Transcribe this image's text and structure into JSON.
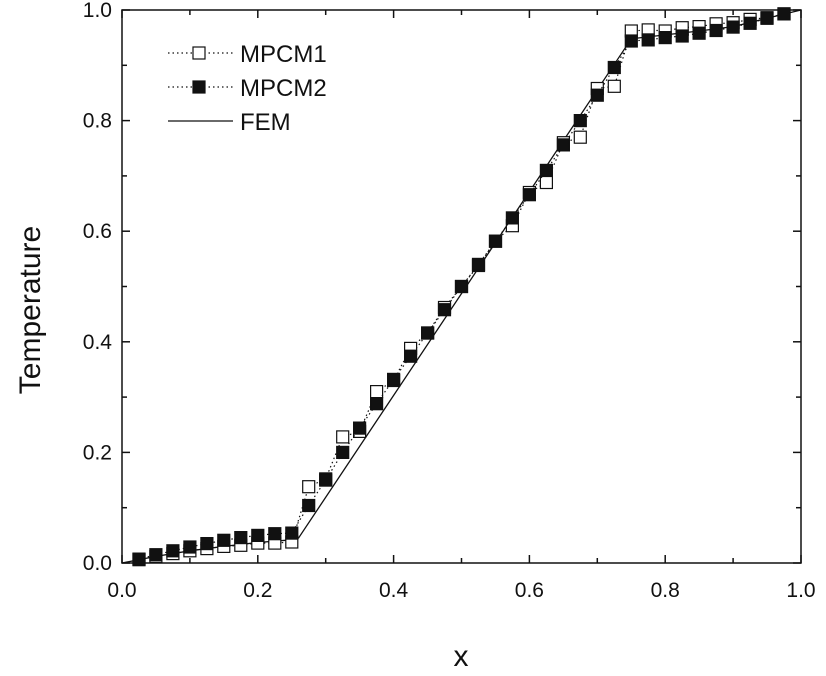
{
  "chart_data": {
    "type": "line",
    "xlabel": "x",
    "ylabel": "Temperature",
    "xlim": [
      0.0,
      1.0
    ],
    "ylim": [
      0.0,
      1.0
    ],
    "x_ticks": [
      "0.0",
      "0.2",
      "0.4",
      "0.6",
      "0.8",
      "1.0"
    ],
    "y_ticks": [
      "0.0",
      "0.2",
      "0.4",
      "0.6",
      "0.8",
      "1.0"
    ],
    "grid": false,
    "legend_position": "top-left",
    "series": [
      {
        "name": "MPCM1",
        "marker": "open-square",
        "line": "dotted",
        "color": "#111111",
        "x": [
          0.025,
          0.05,
          0.075,
          0.1,
          0.125,
          0.15,
          0.175,
          0.2,
          0.225,
          0.25,
          0.275,
          0.3,
          0.325,
          0.35,
          0.375,
          0.4,
          0.425,
          0.45,
          0.475,
          0.5,
          0.525,
          0.55,
          0.575,
          0.6,
          0.625,
          0.65,
          0.675,
          0.7,
          0.725,
          0.75,
          0.775,
          0.8,
          0.825,
          0.85,
          0.875,
          0.9,
          0.925,
          0.95,
          0.975
        ],
        "y": [
          0.006,
          0.012,
          0.017,
          0.022,
          0.026,
          0.03,
          0.032,
          0.036,
          0.036,
          0.038,
          0.138,
          0.152,
          0.228,
          0.238,
          0.31,
          0.33,
          0.388,
          0.416,
          0.462,
          0.5,
          0.538,
          0.582,
          0.61,
          0.67,
          0.688,
          0.76,
          0.77,
          0.858,
          0.862,
          0.962,
          0.964,
          0.962,
          0.968,
          0.97,
          0.975,
          0.977,
          0.983,
          0.986,
          0.993
        ]
      },
      {
        "name": "MPCM2",
        "marker": "filled-square",
        "line": "dotted",
        "color": "#111111",
        "x": [
          0.025,
          0.05,
          0.075,
          0.1,
          0.125,
          0.15,
          0.175,
          0.2,
          0.225,
          0.25,
          0.275,
          0.3,
          0.325,
          0.35,
          0.375,
          0.4,
          0.425,
          0.45,
          0.475,
          0.5,
          0.525,
          0.55,
          0.575,
          0.6,
          0.625,
          0.65,
          0.675,
          0.7,
          0.725,
          0.75,
          0.775,
          0.8,
          0.825,
          0.85,
          0.875,
          0.9,
          0.925,
          0.95,
          0.975
        ],
        "y": [
          0.007,
          0.015,
          0.022,
          0.029,
          0.035,
          0.041,
          0.046,
          0.05,
          0.053,
          0.054,
          0.104,
          0.15,
          0.2,
          0.244,
          0.288,
          0.332,
          0.374,
          0.416,
          0.458,
          0.5,
          0.54,
          0.582,
          0.624,
          0.666,
          0.71,
          0.756,
          0.8,
          0.846,
          0.896,
          0.944,
          0.946,
          0.95,
          0.953,
          0.958,
          0.963,
          0.969,
          0.976,
          0.985,
          0.993
        ]
      },
      {
        "name": "FEM",
        "marker": "none",
        "line": "solid",
        "color": "#111111",
        "x": [
          0.0,
          0.05,
          0.1,
          0.15,
          0.2,
          0.25,
          0.26,
          0.75,
          0.8,
          0.85,
          0.9,
          0.95,
          1.0
        ],
        "y": [
          0.0,
          0.012,
          0.022,
          0.03,
          0.037,
          0.042,
          0.045,
          0.948,
          0.955,
          0.962,
          0.97,
          0.985,
          1.0
        ]
      }
    ]
  }
}
